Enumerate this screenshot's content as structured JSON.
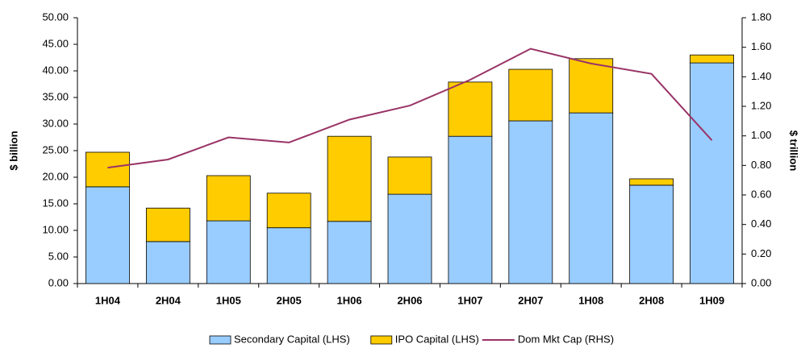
{
  "chart_data": {
    "type": "bar",
    "y_label": "$ billion",
    "y2_label": "$ trillion",
    "categories": [
      "1H04",
      "2H04",
      "1H05",
      "2H05",
      "1H06",
      "2H06",
      "1H07",
      "2H07",
      "1H08",
      "2H08",
      "1H09"
    ],
    "series": [
      {
        "name": "Secondary Capital (LHS)",
        "color": "#99ccff",
        "stack": true,
        "values": [
          18.2,
          7.9,
          11.8,
          10.5,
          11.7,
          16.8,
          27.7,
          30.6,
          32.1,
          18.5,
          41.5
        ]
      },
      {
        "name": "IPO Capital (LHS)",
        "color": "#ffcc00",
        "stack": true,
        "values": [
          6.5,
          6.3,
          8.5,
          6.5,
          16.0,
          7.0,
          10.2,
          9.7,
          10.2,
          1.2,
          1.5
        ]
      },
      {
        "name": "Dom Mkt Cap (RHS)",
        "color": "#993366",
        "type": "line",
        "axis": "y2",
        "values": [
          0.785,
          0.84,
          0.99,
          0.955,
          1.11,
          1.205,
          1.38,
          1.59,
          1.49,
          1.42,
          0.97
        ]
      }
    ],
    "ylim": [
      0,
      50
    ],
    "yticks": [
      {
        "value": 0,
        "label": "0.00"
      },
      {
        "value": 5,
        "label": "5.00"
      },
      {
        "value": 10,
        "label": "10.00"
      },
      {
        "value": 15,
        "label": "15.00"
      },
      {
        "value": 20,
        "label": "20.00"
      },
      {
        "value": 25,
        "label": "25.00"
      },
      {
        "value": 30,
        "label": "30.00"
      },
      {
        "value": 35,
        "label": "35.00"
      },
      {
        "value": 40,
        "label": "40.00"
      },
      {
        "value": 45,
        "label": "45.00"
      },
      {
        "value": 50,
        "label": "50.00"
      }
    ],
    "y2lim": [
      0,
      1.8
    ],
    "y2ticks": [
      {
        "value": 0,
        "label": "0.00"
      },
      {
        "value": 0.2,
        "label": "0.20"
      },
      {
        "value": 0.4,
        "label": "0.40"
      },
      {
        "value": 0.6,
        "label": "0.60"
      },
      {
        "value": 0.8,
        "label": "0.80"
      },
      {
        "value": 1,
        "label": "1.00"
      },
      {
        "value": 1.2,
        "label": "1.20"
      },
      {
        "value": 1.4,
        "label": "1.40"
      },
      {
        "value": 1.6,
        "label": "1.60"
      },
      {
        "value": 1.8,
        "label": "1.80"
      }
    ],
    "grid": false,
    "legend": "bottom"
  }
}
